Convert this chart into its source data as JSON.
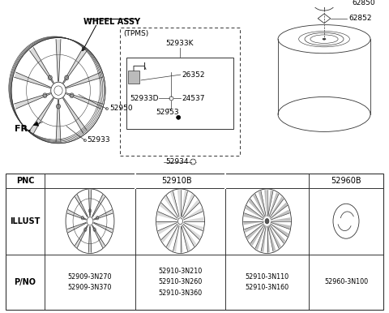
{
  "bg_color": "#ffffff",
  "gray": "#333333",
  "table_headers_pnc": [
    "PNC",
    "52910B",
    "52960B"
  ],
  "table_pno_labels": [
    "52909-3N270\n52909-3N370",
    "52910-3N210\n52910-3N260\n52910-3N360",
    "52910-3N110\n52910-3N160",
    "52960-3N100"
  ],
  "illust_label": "ILLUST",
  "pno_label": "P/NO",
  "pnc_label": "PNC",
  "wheel_assy": "WHEEL ASSY",
  "tpms": "(TPMS)",
  "p52933K": "52933K",
  "p26352": "26352",
  "p52933D": "52933D",
  "p24537": "24537",
  "p52953": "52953",
  "p52934": "52934",
  "p52950": "52950",
  "p52933": "52933",
  "p62850": "62850",
  "p62852": "62852",
  "fr": "FR."
}
